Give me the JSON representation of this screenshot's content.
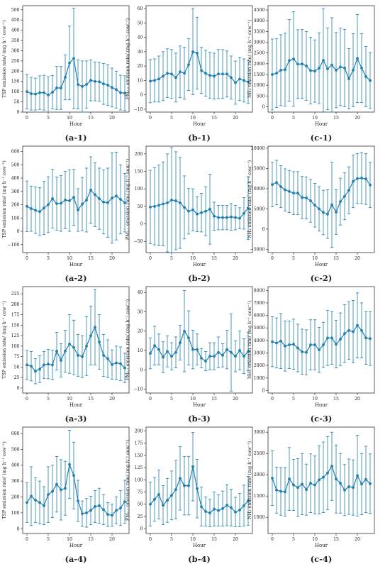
{
  "colors": {
    "series": "#1f7fae",
    "axis": "#333333",
    "background": "#ffffff"
  },
  "chart_data": [
    {
      "id": "a-1",
      "caption": "(a-1)",
      "type": "line",
      "xlabel": "Hour",
      "ylabel": "TSP emission rate/ (mg h⁻¹ cow⁻¹)",
      "xlim": [
        -1,
        24
      ],
      "ylim": [
        0,
        520
      ],
      "yticks": [
        0,
        50,
        100,
        150,
        200,
        250,
        300,
        350,
        400,
        450,
        500
      ],
      "xticks": [
        0,
        5,
        10,
        15,
        20
      ],
      "error_bars": true,
      "x": [
        0,
        1,
        2,
        3,
        4,
        5,
        6,
        7,
        8,
        9,
        10,
        11,
        12,
        13,
        14,
        15,
        16,
        17,
        18,
        19,
        20,
        21,
        22,
        23
      ],
      "y": [
        100,
        90,
        88,
        95,
        95,
        83,
        97,
        118,
        118,
        170,
        240,
        262,
        135,
        125,
        135,
        155,
        150,
        148,
        138,
        132,
        120,
        110,
        95,
        92
      ],
      "err": [
        85,
        80,
        78,
        82,
        85,
        90,
        82,
        105,
        105,
        110,
        180,
        245,
        120,
        125,
        115,
        100,
        95,
        95,
        100,
        100,
        95,
        90,
        85,
        85
      ]
    },
    {
      "id": "b-1",
      "caption": "(b-1)",
      "type": "line",
      "xlabel": "Hour",
      "ylabel": "PM₂.₅ emission rate/ (mg h⁻¹ cow⁻¹)",
      "xlim": [
        -1,
        24
      ],
      "ylim": [
        -12,
        62
      ],
      "yticks": [
        -10,
        0,
        10,
        20,
        30,
        40,
        50,
        60
      ],
      "xticks": [
        0,
        5,
        10,
        15,
        20
      ],
      "error_bars": true,
      "x": [
        0,
        1,
        2,
        3,
        4,
        5,
        6,
        7,
        8,
        9,
        10,
        11,
        12,
        13,
        14,
        15,
        16,
        17,
        18,
        19,
        20,
        21,
        22,
        23
      ],
      "y": [
        9.5,
        10,
        11,
        13,
        15,
        14.5,
        12,
        16,
        15,
        21,
        30,
        29,
        17,
        15,
        13.5,
        13,
        14.5,
        14.5,
        14.5,
        12,
        8.5,
        11,
        10,
        9
      ],
      "err": [
        15,
        15,
        16,
        17,
        17,
        17,
        17,
        18,
        18,
        18,
        30,
        25,
        16,
        16,
        16,
        16,
        17,
        17,
        16,
        15,
        15,
        15,
        15,
        15
      ]
    },
    {
      "id": "c-1",
      "caption": "(c-1)",
      "type": "line",
      "xlabel": "Hour",
      "ylabel": "NH₃ emission rate/ (mg h⁻¹ cow⁻¹)",
      "xlim": [
        -1,
        24
      ],
      "ylim": [
        -250,
        4700
      ],
      "yticks": [
        0,
        500,
        1000,
        1500,
        2000,
        2500,
        3000,
        3500,
        4000,
        4500
      ],
      "xticks": [
        0,
        5,
        10,
        15,
        20
      ],
      "error_bars": true,
      "x": [
        0,
        1,
        2,
        3,
        4,
        5,
        6,
        7,
        8,
        9,
        10,
        11,
        12,
        13,
        14,
        15,
        16,
        17,
        18,
        19,
        20,
        21,
        22,
        23
      ],
      "y": [
        1500,
        1560,
        1700,
        1720,
        2150,
        2220,
        1980,
        1990,
        1900,
        1680,
        1660,
        1790,
        2160,
        1760,
        1940,
        1700,
        1850,
        1800,
        1300,
        1700,
        2240,
        1800,
        1400,
        1220
      ],
      "err": [
        1650,
        1600,
        1650,
        1700,
        1900,
        2200,
        1600,
        1600,
        1600,
        1550,
        1450,
        1650,
        2400,
        1900,
        2200,
        1750,
        1800,
        1800,
        1400,
        1700,
        2050,
        1600,
        1400,
        1300
      ]
    },
    {
      "id": "a-2",
      "caption": "(a-2)",
      "type": "line",
      "xlabel": "Hour",
      "ylabel": "TSP emission rate/ (mg h⁻¹ cow⁻¹)",
      "xlim": [
        -1,
        24
      ],
      "ylim": [
        -160,
        640
      ],
      "yticks": [
        -100,
        0,
        100,
        200,
        300,
        400,
        500,
        600
      ],
      "xticks": [
        0,
        5,
        10,
        15,
        20
      ],
      "error_bars": true,
      "x": [
        0,
        1,
        2,
        3,
        4,
        5,
        6,
        7,
        8,
        9,
        10,
        11,
        12,
        13,
        14,
        15,
        16,
        17,
        18,
        19,
        20,
        21,
        22,
        23
      ],
      "y": [
        188,
        170,
        158,
        148,
        175,
        200,
        245,
        208,
        210,
        235,
        230,
        255,
        160,
        205,
        235,
        310,
        275,
        245,
        220,
        215,
        250,
        265,
        240,
        215
      ],
      "err": [
        190,
        170,
        175,
        180,
        200,
        210,
        220,
        200,
        210,
        215,
        230,
        210,
        160,
        200,
        240,
        250,
        240,
        230,
        240,
        260,
        340,
        330,
        260,
        220
      ]
    },
    {
      "id": "b-2",
      "caption": "(b-2)",
      "type": "line",
      "xlabel": "Hour",
      "ylabel": "PM₂.₅ emission rate/ (mg h⁻¹ cow⁻¹)",
      "xlim": [
        -1,
        24
      ],
      "ylim": [
        -82,
        222
      ],
      "yticks": [
        -50,
        0,
        50,
        100,
        150,
        200
      ],
      "xticks": [
        0,
        5,
        10,
        15,
        20
      ],
      "error_bars": true,
      "x": [
        0,
        1,
        2,
        3,
        4,
        5,
        6,
        7,
        8,
        9,
        10,
        11,
        12,
        13,
        14,
        15,
        16,
        17,
        18,
        19,
        20,
        21,
        22,
        23
      ],
      "y": [
        48,
        50,
        53,
        57,
        60,
        68,
        66,
        60,
        47,
        36,
        40,
        28,
        32,
        36,
        42,
        22,
        18,
        18,
        18,
        20,
        18,
        16,
        30,
        45
      ],
      "err": [
        105,
        110,
        115,
        120,
        140,
        150,
        140,
        130,
        90,
        65,
        60,
        50,
        55,
        70,
        100,
        40,
        35,
        35,
        35,
        38,
        35,
        30,
        45,
        90
      ]
    },
    {
      "id": "c-2",
      "caption": "(c-2)",
      "type": "line",
      "xlabel": "Hour",
      "ylabel": "NH₃ emission rate/ (mg h⁻¹ cow⁻¹)",
      "xlim": [
        -1,
        24
      ],
      "ylim": [
        -5800,
        20500
      ],
      "yticks": [
        -5000,
        0,
        5000,
        10000,
        15000,
        20000
      ],
      "xticks": [
        0,
        5,
        10,
        15,
        20
      ],
      "error_bars": true,
      "x": [
        0,
        1,
        2,
        3,
        4,
        5,
        6,
        7,
        8,
        9,
        10,
        11,
        12,
        13,
        14,
        15,
        16,
        17,
        18,
        19,
        20,
        21,
        22,
        23
      ],
      "y": [
        11000,
        11500,
        10500,
        9700,
        9300,
        8900,
        8900,
        7800,
        7700,
        7000,
        5900,
        5000,
        4100,
        3700,
        6000,
        4200,
        6800,
        8100,
        9600,
        11800,
        12500,
        12600,
        12400,
        10900
      ],
      "err": [
        5500,
        5500,
        5200,
        5200,
        5200,
        5300,
        5300,
        5200,
        5200,
        5300,
        5400,
        5500,
        5500,
        6000,
        10500,
        5500,
        5800,
        5800,
        5800,
        6500,
        6200,
        6300,
        6300,
        5600
      ]
    },
    {
      "id": "a-3",
      "caption": "(a-3)",
      "type": "line",
      "xlabel": "Hour",
      "ylabel": "TSP emission rate/ (mg h⁻¹ cow⁻¹)",
      "xlim": [
        -1,
        24
      ],
      "ylim": [
        -12,
        242
      ],
      "yticks": [
        0,
        25,
        50,
        75,
        100,
        125,
        150,
        175,
        200,
        225
      ],
      "xticks": [
        0,
        5,
        10,
        15,
        20
      ],
      "error_bars": true,
      "x": [
        0,
        1,
        2,
        3,
        4,
        5,
        6,
        7,
        8,
        9,
        10,
        11,
        12,
        13,
        14,
        15,
        16,
        17,
        18,
        19,
        20,
        21,
        22,
        23
      ],
      "y": [
        55,
        52,
        40,
        45,
        55,
        57,
        55,
        88,
        66,
        88,
        105,
        97,
        78,
        75,
        100,
        125,
        145,
        110,
        78,
        70,
        56,
        60,
        58,
        48
      ],
      "err": [
        35,
        35,
        30,
        32,
        32,
        35,
        35,
        45,
        40,
        50,
        70,
        65,
        50,
        50,
        70,
        70,
        90,
        65,
        50,
        45,
        35,
        40,
        40,
        35
      ]
    },
    {
      "id": "b-3",
      "caption": "(b-3)",
      "type": "line",
      "xlabel": "Hour",
      "ylabel": "PM₂.₅ emission rate/ (mg h⁻¹ cow⁻¹)",
      "xlim": [
        -1,
        24
      ],
      "ylim": [
        -12,
        43
      ],
      "yticks": [
        -10,
        0,
        10,
        20,
        30,
        40
      ],
      "xticks": [
        0,
        5,
        10,
        15,
        20
      ],
      "error_bars": true,
      "x": [
        0,
        1,
        2,
        3,
        4,
        5,
        6,
        7,
        8,
        9,
        10,
        11,
        12,
        13,
        14,
        15,
        16,
        17,
        18,
        19,
        20,
        21,
        22,
        23
      ],
      "y": [
        8.5,
        12.5,
        10.5,
        6.5,
        9.5,
        7,
        9,
        14,
        20,
        16.5,
        10.5,
        10.5,
        6,
        4.5,
        7,
        7,
        9,
        7.5,
        10.5,
        9,
        7,
        10,
        7,
        9.5
      ],
      "err": [
        8,
        10,
        8,
        8,
        8,
        7,
        8,
        9,
        21,
        14,
        10,
        8,
        5,
        5,
        7,
        7,
        8,
        6,
        10,
        20,
        8,
        10,
        9,
        10
      ]
    },
    {
      "id": "c-3",
      "caption": "(c-3)",
      "type": "line",
      "xlabel": "Hour",
      "ylabel": "NH₃ emission rate/ (mg h⁻¹ cow⁻¹)",
      "xlim": [
        -1,
        24
      ],
      "ylim": [
        -200,
        8300
      ],
      "yticks": [
        0,
        1000,
        2000,
        3000,
        4000,
        5000,
        6000,
        7000,
        8000
      ],
      "xticks": [
        0,
        5,
        10,
        15,
        20
      ],
      "error_bars": true,
      "x": [
        0,
        1,
        2,
        3,
        4,
        5,
        6,
        7,
        8,
        9,
        10,
        11,
        12,
        13,
        14,
        15,
        16,
        17,
        18,
        19,
        20,
        21,
        22,
        23
      ],
      "y": [
        3900,
        3800,
        3950,
        3550,
        3650,
        3700,
        3400,
        3100,
        3050,
        3650,
        3650,
        3250,
        3650,
        4200,
        4200,
        3700,
        4100,
        4550,
        4800,
        4700,
        5200,
        4800,
        4200,
        4150
      ],
      "err": [
        2000,
        2000,
        2200,
        2000,
        1900,
        2000,
        1900,
        1800,
        1800,
        2000,
        2000,
        1800,
        1800,
        2200,
        2100,
        1900,
        2100,
        2300,
        2300,
        2500,
        2600,
        2200,
        2100,
        2150
      ]
    },
    {
      "id": "a-4",
      "caption": "(a-4)",
      "type": "line",
      "xlabel": "Hour",
      "ylabel": "TSP emission rate/ (mg h⁻¹ cow⁻¹)",
      "xlim": [
        -1,
        24
      ],
      "ylim": [
        -30,
        640
      ],
      "yticks": [
        0,
        100,
        200,
        300,
        400,
        500,
        600
      ],
      "xticks": [
        0,
        5,
        10,
        15,
        20
      ],
      "error_bars": true,
      "x": [
        0,
        1,
        2,
        3,
        4,
        5,
        6,
        7,
        8,
        9,
        10,
        11,
        12,
        13,
        14,
        15,
        16,
        17,
        18,
        19,
        20,
        21,
        22,
        23
      ],
      "y": [
        165,
        205,
        180,
        165,
        145,
        215,
        235,
        280,
        245,
        255,
        405,
        335,
        175,
        95,
        100,
        115,
        140,
        145,
        120,
        90,
        85,
        115,
        130,
        170
      ],
      "err": [
        125,
        185,
        140,
        135,
        120,
        175,
        165,
        175,
        190,
        170,
        215,
        210,
        130,
        80,
        90,
        90,
        100,
        110,
        95,
        75,
        70,
        85,
        110,
        135
      ]
    },
    {
      "id": "b-4",
      "caption": "(b-4)",
      "type": "line",
      "xlabel": "Hour",
      "ylabel": "PM₂.₅ emission rate/ (mg h⁻¹ cow⁻¹)",
      "xlim": [
        -1,
        24
      ],
      "ylim": [
        -10,
        208
      ],
      "yticks": [
        0,
        25,
        50,
        75,
        100,
        125,
        150,
        175,
        200
      ],
      "xticks": [
        0,
        5,
        10,
        15,
        20
      ],
      "error_bars": true,
      "x": [
        0,
        1,
        2,
        3,
        4,
        5,
        6,
        7,
        8,
        9,
        10,
        11,
        12,
        13,
        14,
        15,
        16,
        17,
        18,
        19,
        20,
        21,
        22,
        23
      ],
      "y": [
        50,
        60,
        70,
        48,
        58,
        68,
        80,
        103,
        88,
        88,
        127,
        82,
        45,
        35,
        32,
        40,
        37,
        41,
        48,
        43,
        34,
        38,
        47,
        57
      ],
      "err": [
        45,
        45,
        50,
        40,
        45,
        50,
        60,
        65,
        60,
        60,
        70,
        60,
        40,
        30,
        28,
        35,
        32,
        36,
        42,
        38,
        30,
        34,
        42,
        50
      ]
    },
    {
      "id": "c-4",
      "caption": "(c-4)",
      "type": "line",
      "xlabel": "Hour",
      "ylabel": "NH₃ emission rate/ (mg h⁻¹ cow⁻¹)",
      "xlim": [
        -1,
        24
      ],
      "ylim": [
        620,
        3120
      ],
      "yticks": [
        1000,
        1500,
        2000,
        2500,
        3000
      ],
      "xticks": [
        0,
        5,
        10,
        15,
        20
      ],
      "error_bars": true,
      "x": [
        0,
        1,
        2,
        3,
        4,
        5,
        6,
        7,
        8,
        9,
        10,
        11,
        12,
        13,
        14,
        15,
        16,
        17,
        18,
        19,
        20,
        21,
        22,
        23
      ],
      "y": [
        1920,
        1640,
        1610,
        1600,
        1900,
        1760,
        1700,
        1780,
        1650,
        1800,
        1760,
        1880,
        1940,
        2040,
        2200,
        1900,
        1800,
        1640,
        1720,
        1700,
        1980,
        1780,
        1890,
        1790
      ],
      "err": [
        640,
        540,
        560,
        570,
        740,
        600,
        680,
        720,
        600,
        690,
        680,
        800,
        830,
        860,
        800,
        800,
        700,
        600,
        650,
        650,
        950,
        720,
        780,
        700
      ]
    }
  ]
}
